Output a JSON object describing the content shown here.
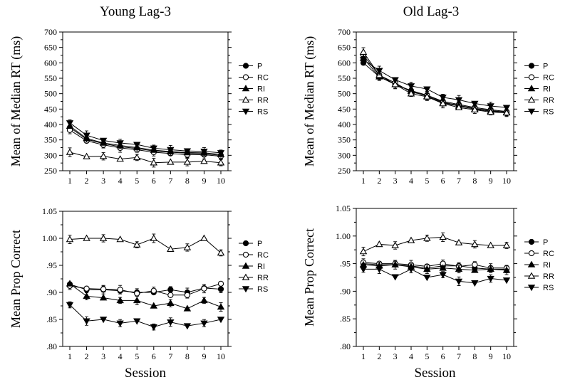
{
  "chart_data": [
    {
      "type": "line",
      "title": "Young Lag-3",
      "xlabel": "",
      "ylabel": "Mean of Median RT (ms)",
      "x": [
        1,
        2,
        3,
        4,
        5,
        6,
        7,
        8,
        9,
        10
      ],
      "xticks": [
        "1",
        "2",
        "3",
        "4",
        "5",
        "6",
        "7",
        "8",
        "9",
        "10"
      ],
      "ylim": [
        250,
        700
      ],
      "yticks": [
        250,
        300,
        350,
        400,
        450,
        500,
        550,
        600,
        650,
        700
      ],
      "ytick_labels": [
        "250",
        "300",
        "350",
        "400",
        "450",
        "500",
        "550",
        "600",
        "650",
        "700"
      ],
      "legend_position": "right",
      "series": [
        {
          "name": "P",
          "marker": "circle-filled",
          "values": [
            390,
            352,
            338,
            328,
            322,
            314,
            310,
            307,
            305,
            300
          ]
        },
        {
          "name": "RC",
          "marker": "circle-open",
          "values": [
            382,
            347,
            334,
            324,
            318,
            310,
            306,
            302,
            302,
            297
          ]
        },
        {
          "name": "RI",
          "marker": "triangle-up-filled",
          "values": [
            395,
            355,
            340,
            332,
            325,
            317,
            312,
            309,
            308,
            303
          ]
        },
        {
          "name": "RR",
          "marker": "triangle-up-open",
          "values": [
            310,
            296,
            297,
            288,
            293,
            276,
            278,
            278,
            281,
            276
          ]
        },
        {
          "name": "RS",
          "marker": "triangle-down-filled",
          "values": [
            405,
            365,
            348,
            340,
            335,
            323,
            318,
            314,
            313,
            308
          ]
        }
      ]
    },
    {
      "type": "line",
      "title": "Old Lag-3",
      "xlabel": "",
      "ylabel": "Mean of Median RT (ms)",
      "x": [
        1,
        2,
        3,
        4,
        5,
        6,
        7,
        8,
        9,
        10
      ],
      "xticks": [
        "1",
        "2",
        "3",
        "4",
        "5",
        "6",
        "7",
        "8",
        "9",
        "10"
      ],
      "ylim": [
        250,
        700
      ],
      "yticks": [
        250,
        300,
        350,
        400,
        450,
        500,
        550,
        600,
        650,
        700
      ],
      "ytick_labels": [
        "250",
        "300",
        "350",
        "400",
        "450",
        "500",
        "550",
        "600",
        "650",
        "700"
      ],
      "legend_position": "right",
      "series": [
        {
          "name": "P",
          "marker": "circle-filled",
          "values": [
            600,
            555,
            530,
            510,
            495,
            475,
            465,
            455,
            448,
            442
          ]
        },
        {
          "name": "RC",
          "marker": "circle-open",
          "values": [
            625,
            560,
            535,
            505,
            495,
            472,
            462,
            452,
            445,
            440
          ]
        },
        {
          "name": "RI",
          "marker": "triangle-up-filled",
          "values": [
            615,
            555,
            530,
            508,
            492,
            470,
            460,
            450,
            443,
            440
          ]
        },
        {
          "name": "RR",
          "marker": "triangle-up-open",
          "values": [
            635,
            560,
            530,
            500,
            490,
            468,
            455,
            448,
            440,
            438
          ]
        },
        {
          "name": "RS",
          "marker": "triangle-down-filled",
          "values": [
            610,
            575,
            545,
            525,
            515,
            488,
            480,
            468,
            460,
            455
          ]
        }
      ]
    },
    {
      "type": "line",
      "title": "",
      "xlabel": "Session",
      "ylabel": "Mean Prop Correct",
      "x": [
        1,
        2,
        3,
        4,
        5,
        6,
        7,
        8,
        9,
        10
      ],
      "xticks": [
        "1",
        "2",
        "3",
        "4",
        "5",
        "6",
        "7",
        "8",
        "9",
        "10"
      ],
      "ylim": [
        0.8,
        1.05
      ],
      "yticks": [
        0.8,
        0.85,
        0.9,
        0.95,
        1.0,
        1.05
      ],
      "ytick_labels": [
        ".80",
        ".85",
        ".90",
        ".95",
        "1.00",
        "1.05"
      ],
      "legend_position": "right",
      "series": [
        {
          "name": "P",
          "marker": "circle-filled",
          "values": [
            0.915,
            0.905,
            0.905,
            0.903,
            0.9,
            0.9,
            0.905,
            0.9,
            0.908,
            0.906
          ]
        },
        {
          "name": "RC",
          "marker": "circle-open",
          "values": [
            0.912,
            0.907,
            0.906,
            0.905,
            0.898,
            0.903,
            0.895,
            0.895,
            0.907,
            0.916
          ]
        },
        {
          "name": "RI",
          "marker": "triangle-up-filled",
          "values": [
            0.916,
            0.893,
            0.89,
            0.885,
            0.885,
            0.875,
            0.88,
            0.87,
            0.885,
            0.873
          ]
        },
        {
          "name": "RR",
          "marker": "triangle-up-open",
          "values": [
            0.998,
            1.0,
            1.0,
            0.998,
            0.988,
            1.0,
            0.98,
            0.983,
            1.0,
            0.973
          ]
        },
        {
          "name": "RS",
          "marker": "triangle-down-filled",
          "values": [
            0.877,
            0.847,
            0.85,
            0.843,
            0.847,
            0.836,
            0.845,
            0.838,
            0.843,
            0.85
          ]
        }
      ]
    },
    {
      "type": "line",
      "title": "",
      "xlabel": "Session",
      "ylabel": "Mean Prop Correct",
      "x": [
        1,
        2,
        3,
        4,
        5,
        6,
        7,
        8,
        9,
        10
      ],
      "xticks": [
        "1",
        "2",
        "3",
        "4",
        "5",
        "6",
        "7",
        "8",
        "9",
        "10"
      ],
      "ylim": [
        0.8,
        1.05
      ],
      "yticks": [
        0.8,
        0.85,
        0.9,
        0.95,
        1.0,
        1.05
      ],
      "ytick_labels": [
        ".80",
        ".85",
        ".90",
        ".95",
        "1.00",
        "1.05"
      ],
      "legend_position": "right",
      "series": [
        {
          "name": "P",
          "marker": "circle-filled",
          "values": [
            0.95,
            0.948,
            0.948,
            0.946,
            0.942,
            0.946,
            0.946,
            0.942,
            0.94,
            0.94
          ]
        },
        {
          "name": "RC",
          "marker": "circle-open",
          "values": [
            0.952,
            0.95,
            0.95,
            0.948,
            0.945,
            0.95,
            0.945,
            0.948,
            0.942,
            0.942
          ]
        },
        {
          "name": "RI",
          "marker": "triangle-up-filled",
          "values": [
            0.948,
            0.946,
            0.948,
            0.944,
            0.94,
            0.942,
            0.94,
            0.938,
            0.94,
            0.938
          ]
        },
        {
          "name": "RR",
          "marker": "triangle-up-open",
          "values": [
            0.972,
            0.985,
            0.983,
            0.992,
            0.996,
            0.998,
            0.988,
            0.985,
            0.983,
            0.983
          ]
        },
        {
          "name": "RS",
          "marker": "triangle-down-filled",
          "values": [
            0.94,
            0.94,
            0.926,
            0.94,
            0.925,
            0.93,
            0.918,
            0.915,
            0.923,
            0.92
          ]
        }
      ]
    }
  ]
}
